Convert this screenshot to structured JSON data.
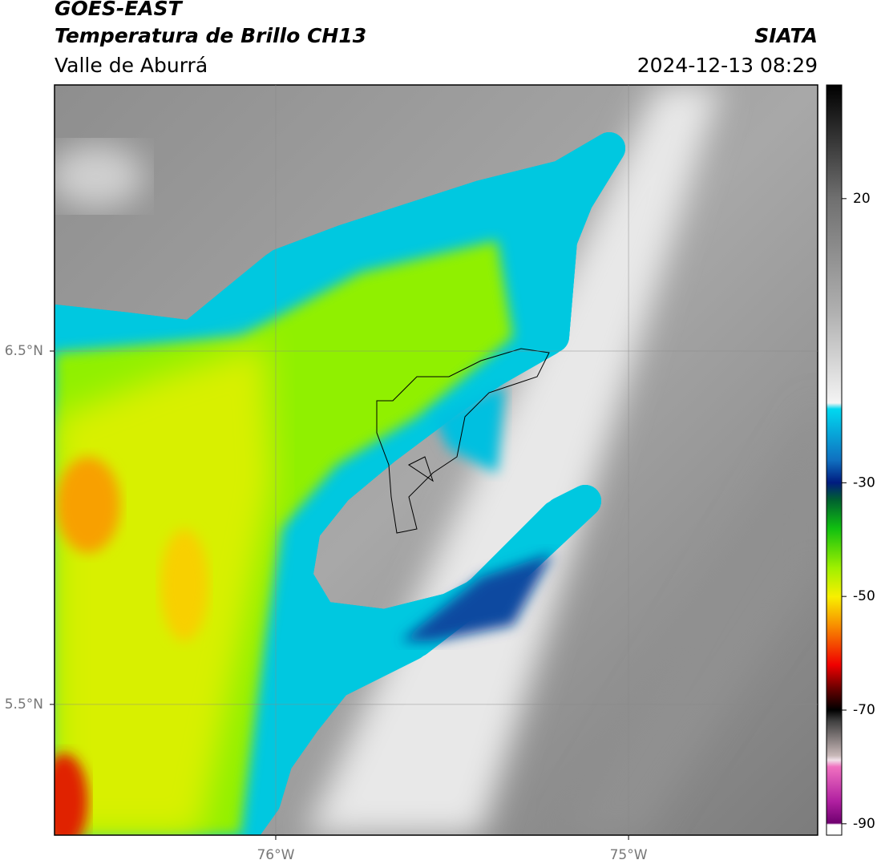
{
  "header": {
    "title": "GOES-EAST",
    "subtitle": "Temperatura de Brillo CH13",
    "region": "Valle de Aburrá",
    "source": "SIATA",
    "datetime": "2024-12-13 08:29"
  },
  "map": {
    "xlim": [
      -76.627,
      -74.464
    ],
    "ylim": [
      5.13,
      7.253
    ],
    "xticks": [
      {
        "value": -76,
        "label": "76°W"
      },
      {
        "value": -75,
        "label": "75°W"
      }
    ],
    "yticks": [
      {
        "value": 5.5,
        "label": "5.5°N"
      },
      {
        "value": 6.5,
        "label": "6.5°N"
      }
    ],
    "grid": true
  },
  "colorbar": {
    "range": [
      -92,
      40
    ],
    "ticks": [
      20,
      -30,
      -50,
      -70,
      -90
    ]
  }
}
